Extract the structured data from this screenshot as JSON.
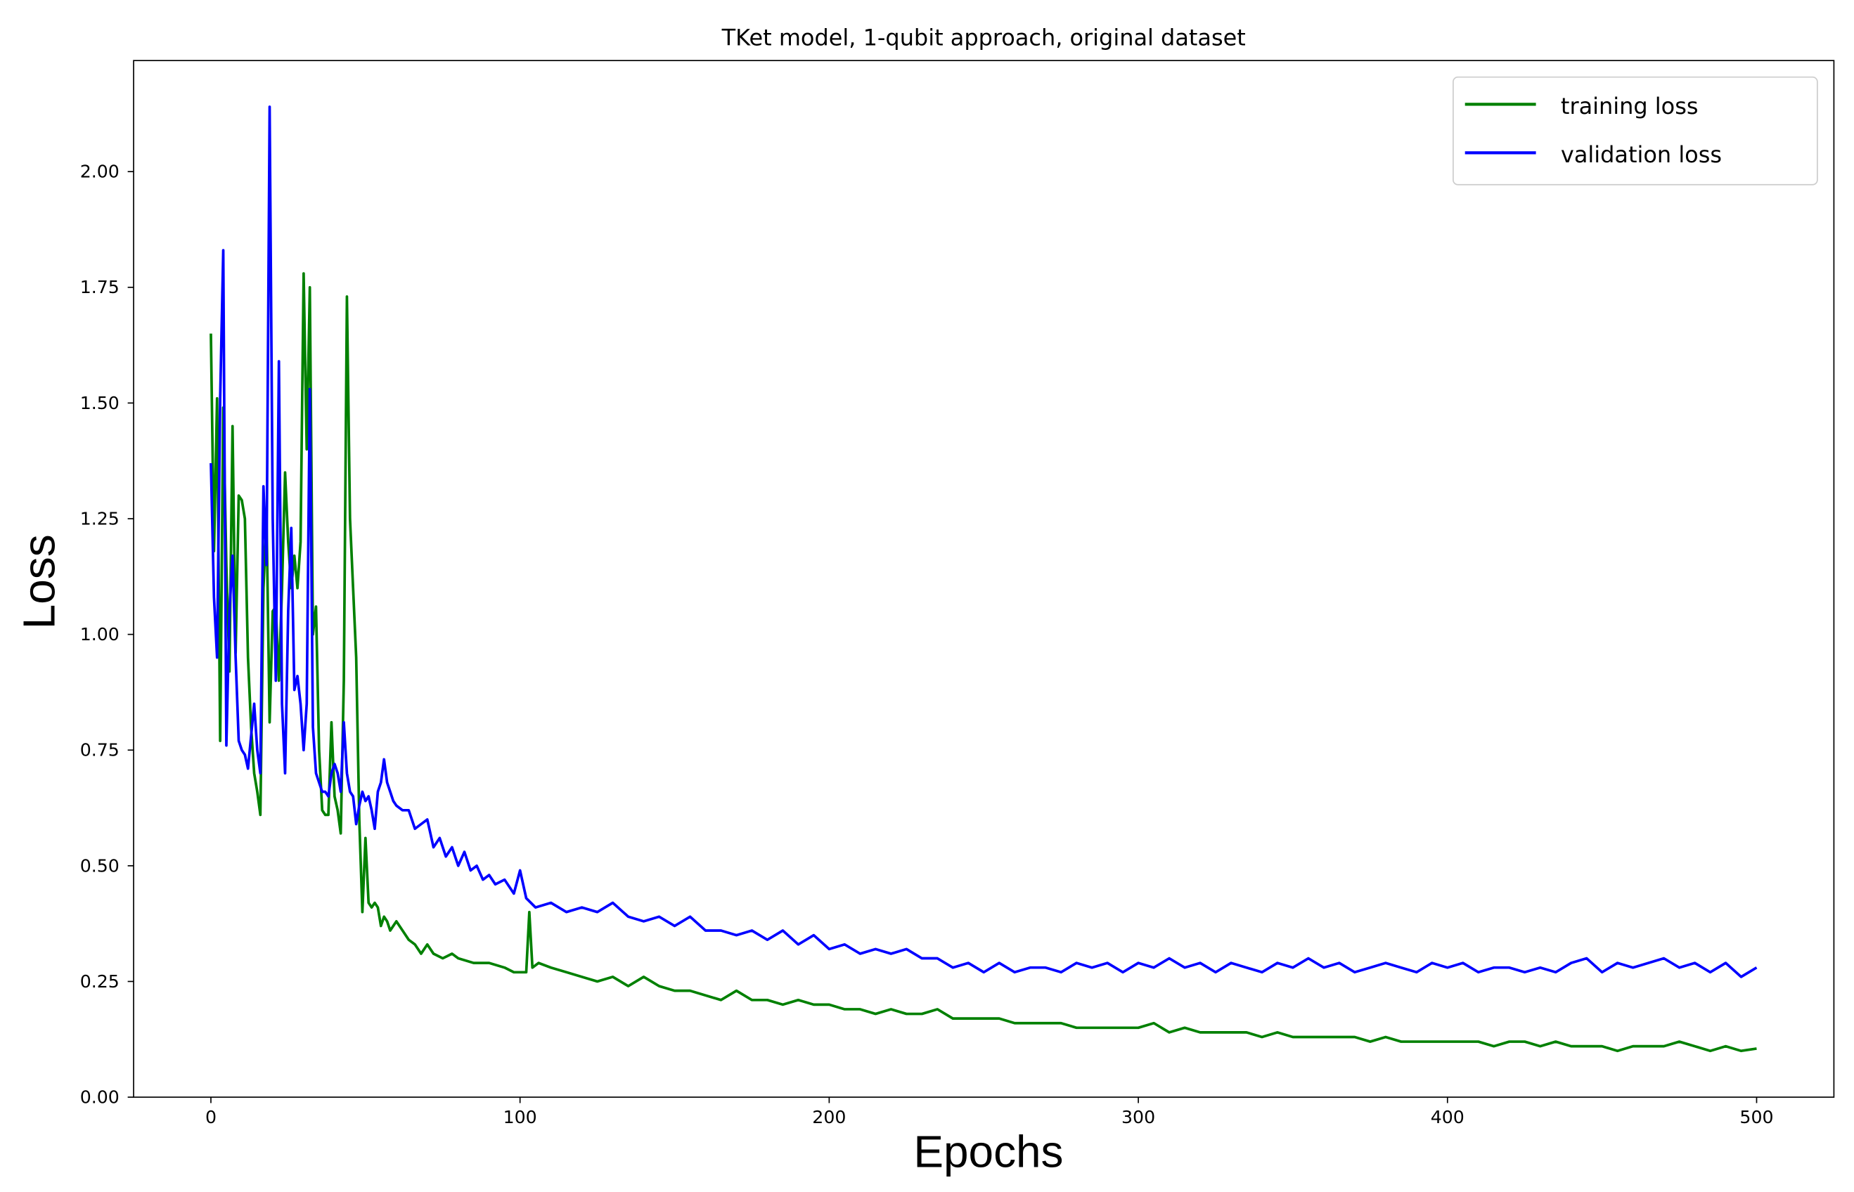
{
  "chart_data": {
    "type": "line",
    "title": "TKet model, 1-qubit approach, original dataset",
    "xlabel": "Epochs",
    "ylabel": "Loss",
    "xlim": [
      -25,
      525
    ],
    "ylim": [
      0,
      2.24
    ],
    "xticks": [
      0,
      100,
      200,
      300,
      400,
      500
    ],
    "xtick_labels": [
      "0",
      "100",
      "200",
      "300",
      "400",
      "500"
    ],
    "yticks": [
      0,
      0.25,
      0.5,
      0.75,
      1.0,
      1.25,
      1.5,
      1.75,
      2.0
    ],
    "ytick_labels": [
      "0.00",
      "0.25",
      "0.50",
      "0.75",
      "1.00",
      "1.25",
      "1.50",
      "1.75",
      "2.00"
    ],
    "grid": false,
    "legend_position": "top-right",
    "series": [
      {
        "name": "training loss",
        "color": "#008000",
        "points": [
          [
            0,
            1.65
          ],
          [
            1,
            1.18
          ],
          [
            2,
            1.51
          ],
          [
            3,
            0.77
          ],
          [
            4,
            1.49
          ],
          [
            5,
            1.15
          ],
          [
            6,
            0.92
          ],
          [
            7,
            1.45
          ],
          [
            8,
            0.96
          ],
          [
            9,
            1.3
          ],
          [
            10,
            1.29
          ],
          [
            11,
            1.25
          ],
          [
            12,
            0.95
          ],
          [
            13,
            0.8
          ],
          [
            14,
            0.7
          ],
          [
            15,
            0.66
          ],
          [
            16,
            0.61
          ],
          [
            17,
            1.1
          ],
          [
            18,
            1.25
          ],
          [
            19,
            0.81
          ],
          [
            20,
            1.05
          ],
          [
            21,
            1.06
          ],
          [
            22,
            0.9
          ],
          [
            23,
            1.1
          ],
          [
            24,
            1.35
          ],
          [
            25,
            1.2
          ],
          [
            26,
            1.1
          ],
          [
            27,
            1.17
          ],
          [
            28,
            1.1
          ],
          [
            29,
            1.2
          ],
          [
            30,
            1.78
          ],
          [
            31,
            1.4
          ],
          [
            32,
            1.75
          ],
          [
            33,
            1.0
          ],
          [
            34,
            1.06
          ],
          [
            35,
            0.75
          ],
          [
            36,
            0.62
          ],
          [
            37,
            0.61
          ],
          [
            38,
            0.61
          ],
          [
            39,
            0.81
          ],
          [
            40,
            0.65
          ],
          [
            41,
            0.62
          ],
          [
            42,
            0.57
          ],
          [
            43,
            0.9
          ],
          [
            44,
            1.73
          ],
          [
            45,
            1.25
          ],
          [
            46,
            1.1
          ],
          [
            47,
            0.95
          ],
          [
            48,
            0.6
          ],
          [
            49,
            0.4
          ],
          [
            50,
            0.56
          ],
          [
            51,
            0.42
          ],
          [
            52,
            0.41
          ],
          [
            53,
            0.42
          ],
          [
            54,
            0.41
          ],
          [
            55,
            0.37
          ],
          [
            56,
            0.39
          ],
          [
            57,
            0.38
          ],
          [
            58,
            0.36
          ],
          [
            59,
            0.37
          ],
          [
            60,
            0.38
          ],
          [
            62,
            0.36
          ],
          [
            64,
            0.34
          ],
          [
            66,
            0.33
          ],
          [
            68,
            0.31
          ],
          [
            70,
            0.33
          ],
          [
            72,
            0.31
          ],
          [
            75,
            0.3
          ],
          [
            78,
            0.31
          ],
          [
            80,
            0.3
          ],
          [
            85,
            0.29
          ],
          [
            90,
            0.29
          ],
          [
            95,
            0.28
          ],
          [
            98,
            0.27
          ],
          [
            100,
            0.27
          ],
          [
            102,
            0.27
          ],
          [
            103,
            0.4
          ],
          [
            104,
            0.28
          ],
          [
            106,
            0.29
          ],
          [
            110,
            0.28
          ],
          [
            115,
            0.27
          ],
          [
            120,
            0.26
          ],
          [
            125,
            0.25
          ],
          [
            130,
            0.26
          ],
          [
            135,
            0.24
          ],
          [
            140,
            0.26
          ],
          [
            145,
            0.24
          ],
          [
            150,
            0.23
          ],
          [
            155,
            0.23
          ],
          [
            160,
            0.22
          ],
          [
            165,
            0.21
          ],
          [
            170,
            0.23
          ],
          [
            175,
            0.21
          ],
          [
            180,
            0.21
          ],
          [
            185,
            0.2
          ],
          [
            190,
            0.21
          ],
          [
            195,
            0.2
          ],
          [
            200,
            0.2
          ],
          [
            205,
            0.19
          ],
          [
            210,
            0.19
          ],
          [
            215,
            0.18
          ],
          [
            220,
            0.19
          ],
          [
            225,
            0.18
          ],
          [
            230,
            0.18
          ],
          [
            235,
            0.19
          ],
          [
            240,
            0.17
          ],
          [
            245,
            0.17
          ],
          [
            250,
            0.17
          ],
          [
            255,
            0.17
          ],
          [
            260,
            0.16
          ],
          [
            265,
            0.16
          ],
          [
            270,
            0.16
          ],
          [
            275,
            0.16
          ],
          [
            280,
            0.15
          ],
          [
            285,
            0.15
          ],
          [
            290,
            0.15
          ],
          [
            295,
            0.15
          ],
          [
            300,
            0.15
          ],
          [
            305,
            0.16
          ],
          [
            310,
            0.14
          ],
          [
            315,
            0.15
          ],
          [
            320,
            0.14
          ],
          [
            325,
            0.14
          ],
          [
            330,
            0.14
          ],
          [
            335,
            0.14
          ],
          [
            340,
            0.13
          ],
          [
            345,
            0.14
          ],
          [
            350,
            0.13
          ],
          [
            355,
            0.13
          ],
          [
            360,
            0.13
          ],
          [
            365,
            0.13
          ],
          [
            370,
            0.13
          ],
          [
            375,
            0.12
          ],
          [
            380,
            0.13
          ],
          [
            385,
            0.12
          ],
          [
            390,
            0.12
          ],
          [
            395,
            0.12
          ],
          [
            400,
            0.12
          ],
          [
            405,
            0.12
          ],
          [
            410,
            0.12
          ],
          [
            415,
            0.11
          ],
          [
            420,
            0.12
          ],
          [
            425,
            0.12
          ],
          [
            430,
            0.11
          ],
          [
            435,
            0.12
          ],
          [
            440,
            0.11
          ],
          [
            445,
            0.11
          ],
          [
            450,
            0.11
          ],
          [
            455,
            0.1
          ],
          [
            460,
            0.11
          ],
          [
            465,
            0.11
          ],
          [
            470,
            0.11
          ],
          [
            475,
            0.12
          ],
          [
            480,
            0.11
          ],
          [
            485,
            0.1
          ],
          [
            490,
            0.11
          ],
          [
            495,
            0.1
          ],
          [
            500,
            0.105
          ]
        ]
      },
      {
        "name": "validation loss",
        "color": "#0000ff",
        "points": [
          [
            0,
            1.37
          ],
          [
            1,
            1.08
          ],
          [
            2,
            0.95
          ],
          [
            3,
            1.51
          ],
          [
            4,
            1.83
          ],
          [
            5,
            0.76
          ],
          [
            6,
            1.05
          ],
          [
            7,
            1.17
          ],
          [
            8,
            0.95
          ],
          [
            9,
            0.77
          ],
          [
            10,
            0.75
          ],
          [
            11,
            0.74
          ],
          [
            12,
            0.71
          ],
          [
            13,
            0.78
          ],
          [
            14,
            0.85
          ],
          [
            15,
            0.75
          ],
          [
            16,
            0.7
          ],
          [
            17,
            1.32
          ],
          [
            18,
            1.15
          ],
          [
            19,
            2.14
          ],
          [
            20,
            1.25
          ],
          [
            21,
            0.9
          ],
          [
            22,
            1.59
          ],
          [
            23,
            0.85
          ],
          [
            24,
            0.7
          ],
          [
            25,
            1.05
          ],
          [
            26,
            1.23
          ],
          [
            27,
            0.88
          ],
          [
            28,
            0.91
          ],
          [
            29,
            0.85
          ],
          [
            30,
            0.75
          ],
          [
            31,
            0.85
          ],
          [
            32,
            1.53
          ],
          [
            33,
            0.8
          ],
          [
            34,
            0.7
          ],
          [
            35,
            0.68
          ],
          [
            36,
            0.66
          ],
          [
            37,
            0.66
          ],
          [
            38,
            0.65
          ],
          [
            39,
            0.7
          ],
          [
            40,
            0.72
          ],
          [
            41,
            0.7
          ],
          [
            42,
            0.66
          ],
          [
            43,
            0.81
          ],
          [
            44,
            0.7
          ],
          [
            45,
            0.66
          ],
          [
            46,
            0.65
          ],
          [
            47,
            0.59
          ],
          [
            48,
            0.63
          ],
          [
            49,
            0.66
          ],
          [
            50,
            0.64
          ],
          [
            51,
            0.65
          ],
          [
            52,
            0.62
          ],
          [
            53,
            0.58
          ],
          [
            54,
            0.66
          ],
          [
            55,
            0.68
          ],
          [
            56,
            0.73
          ],
          [
            57,
            0.68
          ],
          [
            58,
            0.66
          ],
          [
            59,
            0.64
          ],
          [
            60,
            0.63
          ],
          [
            62,
            0.62
          ],
          [
            64,
            0.62
          ],
          [
            66,
            0.58
          ],
          [
            68,
            0.59
          ],
          [
            70,
            0.6
          ],
          [
            72,
            0.54
          ],
          [
            74,
            0.56
          ],
          [
            76,
            0.52
          ],
          [
            78,
            0.54
          ],
          [
            80,
            0.5
          ],
          [
            82,
            0.53
          ],
          [
            84,
            0.49
          ],
          [
            86,
            0.5
          ],
          [
            88,
            0.47
          ],
          [
            90,
            0.48
          ],
          [
            92,
            0.46
          ],
          [
            95,
            0.47
          ],
          [
            98,
            0.44
          ],
          [
            100,
            0.49
          ],
          [
            102,
            0.43
          ],
          [
            105,
            0.41
          ],
          [
            110,
            0.42
          ],
          [
            115,
            0.4
          ],
          [
            120,
            0.41
          ],
          [
            125,
            0.4
          ],
          [
            130,
            0.42
          ],
          [
            135,
            0.39
          ],
          [
            140,
            0.38
          ],
          [
            145,
            0.39
          ],
          [
            150,
            0.37
          ],
          [
            155,
            0.39
          ],
          [
            160,
            0.36
          ],
          [
            165,
            0.36
          ],
          [
            170,
            0.35
          ],
          [
            175,
            0.36
          ],
          [
            180,
            0.34
          ],
          [
            185,
            0.36
          ],
          [
            190,
            0.33
          ],
          [
            195,
            0.35
          ],
          [
            200,
            0.32
          ],
          [
            205,
            0.33
          ],
          [
            210,
            0.31
          ],
          [
            215,
            0.32
          ],
          [
            220,
            0.31
          ],
          [
            225,
            0.32
          ],
          [
            230,
            0.3
          ],
          [
            235,
            0.3
          ],
          [
            240,
            0.28
          ],
          [
            245,
            0.29
          ],
          [
            250,
            0.27
          ],
          [
            255,
            0.29
          ],
          [
            260,
            0.27
          ],
          [
            265,
            0.28
          ],
          [
            270,
            0.28
          ],
          [
            275,
            0.27
          ],
          [
            280,
            0.29
          ],
          [
            285,
            0.28
          ],
          [
            290,
            0.29
          ],
          [
            295,
            0.27
          ],
          [
            300,
            0.29
          ],
          [
            305,
            0.28
          ],
          [
            310,
            0.3
          ],
          [
            315,
            0.28
          ],
          [
            320,
            0.29
          ],
          [
            325,
            0.27
          ],
          [
            330,
            0.29
          ],
          [
            335,
            0.28
          ],
          [
            340,
            0.27
          ],
          [
            345,
            0.29
          ],
          [
            350,
            0.28
          ],
          [
            355,
            0.3
          ],
          [
            360,
            0.28
          ],
          [
            365,
            0.29
          ],
          [
            370,
            0.27
          ],
          [
            375,
            0.28
          ],
          [
            380,
            0.29
          ],
          [
            385,
            0.28
          ],
          [
            390,
            0.27
          ],
          [
            395,
            0.29
          ],
          [
            400,
            0.28
          ],
          [
            405,
            0.29
          ],
          [
            410,
            0.27
          ],
          [
            415,
            0.28
          ],
          [
            420,
            0.28
          ],
          [
            425,
            0.27
          ],
          [
            430,
            0.28
          ],
          [
            435,
            0.27
          ],
          [
            440,
            0.29
          ],
          [
            445,
            0.3
          ],
          [
            450,
            0.27
          ],
          [
            455,
            0.29
          ],
          [
            460,
            0.28
          ],
          [
            465,
            0.29
          ],
          [
            470,
            0.3
          ],
          [
            475,
            0.28
          ],
          [
            480,
            0.29
          ],
          [
            485,
            0.27
          ],
          [
            490,
            0.29
          ],
          [
            495,
            0.26
          ],
          [
            500,
            0.28
          ]
        ]
      }
    ]
  }
}
